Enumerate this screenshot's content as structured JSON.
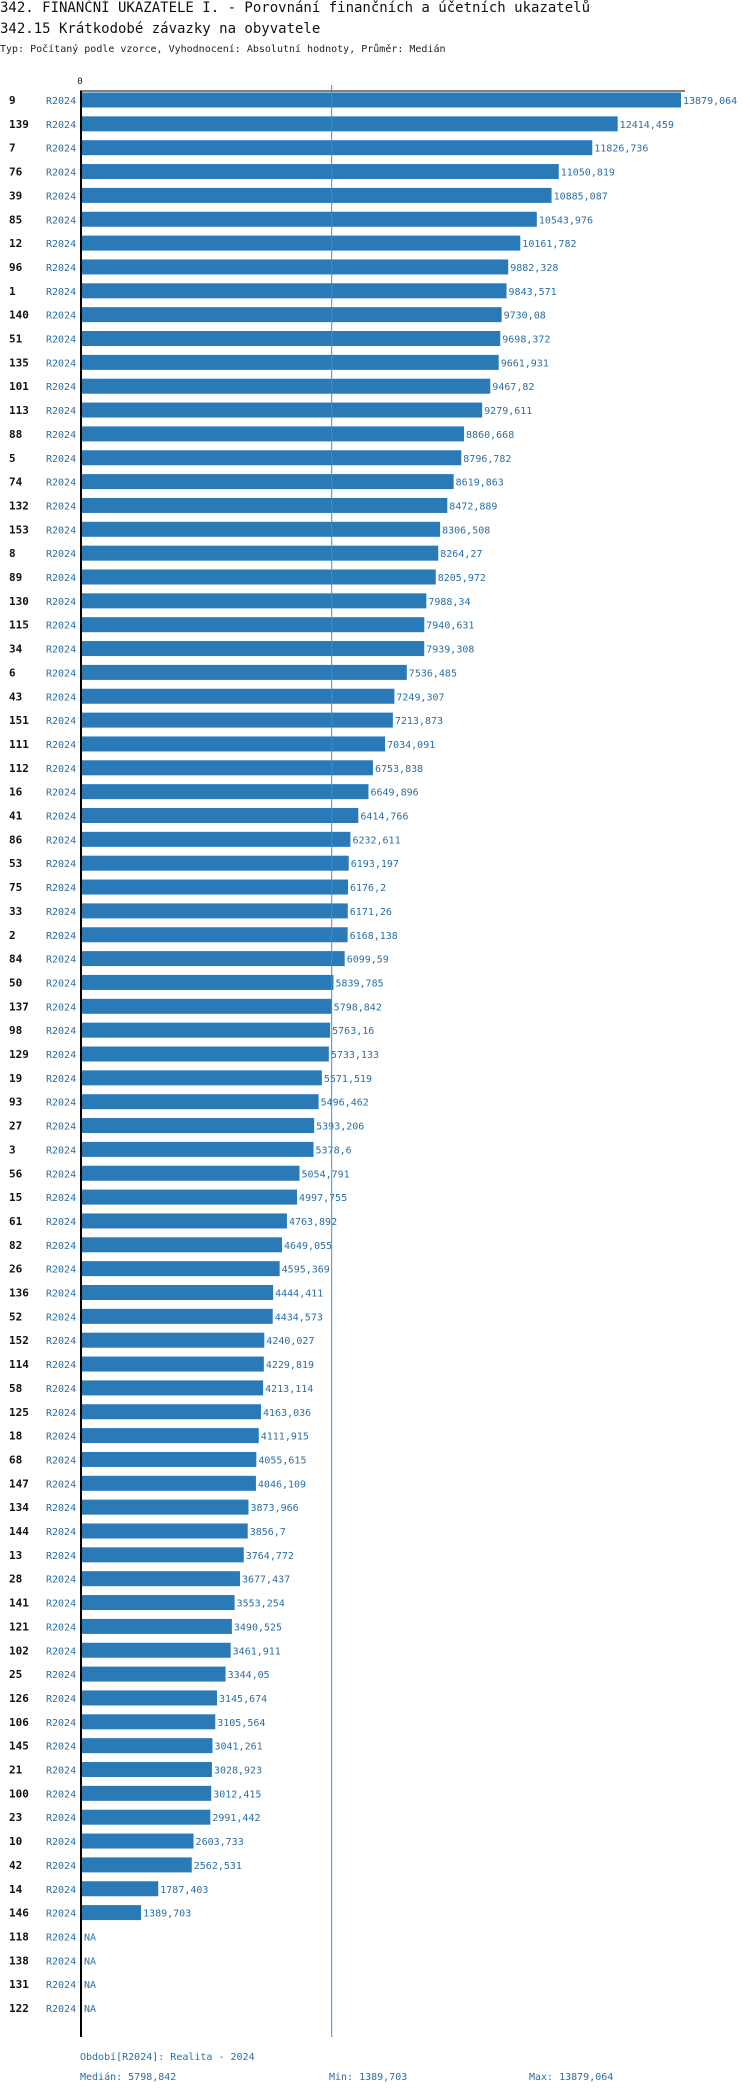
{
  "header": {
    "title": "342. FINANČNÍ UKAZATELE I. - Porovnání finančních a účetních ukazatelů",
    "subtitle": "342.15 Krátkodobé závazky na obyvatele",
    "params": "Typ: Počítaný podle vzorce, Vyhodnocení: Absolutní hodnoty, Průměr: Medián"
  },
  "chart_data": {
    "type": "bar",
    "orientation": "horizontal",
    "axis_zero_label": "0",
    "xlim": [
      0,
      13879.064
    ],
    "median": 5798.842,
    "bar_color": "#2a7ab8",
    "median_line_color": "#3a8fd0",
    "rows": [
      {
        "id": "9",
        "period": "R2024",
        "value": 13879.064,
        "label": "13879,064"
      },
      {
        "id": "139",
        "period": "R2024",
        "value": 12414.459,
        "label": "12414,459"
      },
      {
        "id": "7",
        "period": "R2024",
        "value": 11826.736,
        "label": "11826,736"
      },
      {
        "id": "76",
        "period": "R2024",
        "value": 11050.819,
        "label": "11050,819"
      },
      {
        "id": "39",
        "period": "R2024",
        "value": 10885.087,
        "label": "10885,087"
      },
      {
        "id": "85",
        "period": "R2024",
        "value": 10543.976,
        "label": "10543,976"
      },
      {
        "id": "12",
        "period": "R2024",
        "value": 10161.782,
        "label": "10161,782"
      },
      {
        "id": "96",
        "period": "R2024",
        "value": 9882.328,
        "label": "9882,328"
      },
      {
        "id": "1",
        "period": "R2024",
        "value": 9843.571,
        "label": "9843,571"
      },
      {
        "id": "140",
        "period": "R2024",
        "value": 9730.08,
        "label": "9730,08"
      },
      {
        "id": "51",
        "period": "R2024",
        "value": 9698.372,
        "label": "9698,372"
      },
      {
        "id": "135",
        "period": "R2024",
        "value": 9661.931,
        "label": "9661,931"
      },
      {
        "id": "101",
        "period": "R2024",
        "value": 9467.82,
        "label": "9467,82"
      },
      {
        "id": "113",
        "period": "R2024",
        "value": 9279.611,
        "label": "9279,611"
      },
      {
        "id": "88",
        "period": "R2024",
        "value": 8860.668,
        "label": "8860,668"
      },
      {
        "id": "5",
        "period": "R2024",
        "value": 8796.782,
        "label": "8796,782"
      },
      {
        "id": "74",
        "period": "R2024",
        "value": 8619.863,
        "label": "8619,863"
      },
      {
        "id": "132",
        "period": "R2024",
        "value": 8472.889,
        "label": "8472,889"
      },
      {
        "id": "153",
        "period": "R2024",
        "value": 8306.508,
        "label": "8306,508"
      },
      {
        "id": "8",
        "period": "R2024",
        "value": 8264.27,
        "label": "8264,27"
      },
      {
        "id": "89",
        "period": "R2024",
        "value": 8205.972,
        "label": "8205,972"
      },
      {
        "id": "130",
        "period": "R2024",
        "value": 7988.34,
        "label": "7988,34"
      },
      {
        "id": "115",
        "period": "R2024",
        "value": 7940.631,
        "label": "7940,631"
      },
      {
        "id": "34",
        "period": "R2024",
        "value": 7939.308,
        "label": "7939,308"
      },
      {
        "id": "6",
        "period": "R2024",
        "value": 7536.485,
        "label": "7536,485"
      },
      {
        "id": "43",
        "period": "R2024",
        "value": 7249.307,
        "label": "7249,307"
      },
      {
        "id": "151",
        "period": "R2024",
        "value": 7213.873,
        "label": "7213,873"
      },
      {
        "id": "111",
        "period": "R2024",
        "value": 7034.091,
        "label": "7034,091"
      },
      {
        "id": "112",
        "period": "R2024",
        "value": 6753.838,
        "label": "6753,838"
      },
      {
        "id": "16",
        "period": "R2024",
        "value": 6649.896,
        "label": "6649,896"
      },
      {
        "id": "41",
        "period": "R2024",
        "value": 6414.766,
        "label": "6414,766"
      },
      {
        "id": "86",
        "period": "R2024",
        "value": 6232.611,
        "label": "6232,611"
      },
      {
        "id": "53",
        "period": "R2024",
        "value": 6193.197,
        "label": "6193,197"
      },
      {
        "id": "75",
        "period": "R2024",
        "value": 6176.2,
        "label": "6176,2"
      },
      {
        "id": "33",
        "period": "R2024",
        "value": 6171.26,
        "label": "6171,26"
      },
      {
        "id": "2",
        "period": "R2024",
        "value": 6168.138,
        "label": "6168,138"
      },
      {
        "id": "84",
        "period": "R2024",
        "value": 6099.59,
        "label": "6099,59"
      },
      {
        "id": "50",
        "period": "R2024",
        "value": 5839.785,
        "label": "5839,785"
      },
      {
        "id": "137",
        "period": "R2024",
        "value": 5798.842,
        "label": "5798,842"
      },
      {
        "id": "98",
        "period": "R2024",
        "value": 5763.16,
        "label": "5763,16"
      },
      {
        "id": "129",
        "period": "R2024",
        "value": 5733.133,
        "label": "5733,133"
      },
      {
        "id": "19",
        "period": "R2024",
        "value": 5571.519,
        "label": "5571,519"
      },
      {
        "id": "93",
        "period": "R2024",
        "value": 5496.462,
        "label": "5496,462"
      },
      {
        "id": "27",
        "period": "R2024",
        "value": 5393.206,
        "label": "5393,206"
      },
      {
        "id": "3",
        "period": "R2024",
        "value": 5378.6,
        "label": "5378,6"
      },
      {
        "id": "56",
        "period": "R2024",
        "value": 5054.791,
        "label": "5054,791"
      },
      {
        "id": "15",
        "period": "R2024",
        "value": 4997.755,
        "label": "4997,755"
      },
      {
        "id": "61",
        "period": "R2024",
        "value": 4763.892,
        "label": "4763,892"
      },
      {
        "id": "82",
        "period": "R2024",
        "value": 4649.055,
        "label": "4649,055"
      },
      {
        "id": "26",
        "period": "R2024",
        "value": 4595.369,
        "label": "4595,369"
      },
      {
        "id": "136",
        "period": "R2024",
        "value": 4444.411,
        "label": "4444,411"
      },
      {
        "id": "52",
        "period": "R2024",
        "value": 4434.573,
        "label": "4434,573"
      },
      {
        "id": "152",
        "period": "R2024",
        "value": 4240.027,
        "label": "4240,027"
      },
      {
        "id": "114",
        "period": "R2024",
        "value": 4229.819,
        "label": "4229,819"
      },
      {
        "id": "58",
        "period": "R2024",
        "value": 4213.114,
        "label": "4213,114"
      },
      {
        "id": "125",
        "period": "R2024",
        "value": 4163.036,
        "label": "4163,036"
      },
      {
        "id": "18",
        "period": "R2024",
        "value": 4111.915,
        "label": "4111,915"
      },
      {
        "id": "68",
        "period": "R2024",
        "value": 4055.615,
        "label": "4055,615"
      },
      {
        "id": "147",
        "period": "R2024",
        "value": 4046.109,
        "label": "4046,109"
      },
      {
        "id": "134",
        "period": "R2024",
        "value": 3873.966,
        "label": "3873,966"
      },
      {
        "id": "144",
        "period": "R2024",
        "value": 3856.7,
        "label": "3856,7"
      },
      {
        "id": "13",
        "period": "R2024",
        "value": 3764.772,
        "label": "3764,772"
      },
      {
        "id": "28",
        "period": "R2024",
        "value": 3677.437,
        "label": "3677,437"
      },
      {
        "id": "141",
        "period": "R2024",
        "value": 3553.254,
        "label": "3553,254"
      },
      {
        "id": "121",
        "period": "R2024",
        "value": 3490.525,
        "label": "3490,525"
      },
      {
        "id": "102",
        "period": "R2024",
        "value": 3461.911,
        "label": "3461,911"
      },
      {
        "id": "25",
        "period": "R2024",
        "value": 3344.05,
        "label": "3344,05"
      },
      {
        "id": "126",
        "period": "R2024",
        "value": 3145.674,
        "label": "3145,674"
      },
      {
        "id": "106",
        "period": "R2024",
        "value": 3105.564,
        "label": "3105,564"
      },
      {
        "id": "145",
        "period": "R2024",
        "value": 3041.261,
        "label": "3041,261"
      },
      {
        "id": "21",
        "period": "R2024",
        "value": 3028.923,
        "label": "3028,923"
      },
      {
        "id": "100",
        "period": "R2024",
        "value": 3012.415,
        "label": "3012,415"
      },
      {
        "id": "23",
        "period": "R2024",
        "value": 2991.442,
        "label": "2991,442"
      },
      {
        "id": "10",
        "period": "R2024",
        "value": 2603.733,
        "label": "2603,733"
      },
      {
        "id": "42",
        "period": "R2024",
        "value": 2562.531,
        "label": "2562,531"
      },
      {
        "id": "14",
        "period": "R2024",
        "value": 1787.403,
        "label": "1787,403"
      },
      {
        "id": "146",
        "period": "R2024",
        "value": 1389.703,
        "label": "1389,703"
      },
      {
        "id": "118",
        "period": "R2024",
        "value": null,
        "label": "NA"
      },
      {
        "id": "138",
        "period": "R2024",
        "value": null,
        "label": "NA"
      },
      {
        "id": "131",
        "period": "R2024",
        "value": null,
        "label": "NA"
      },
      {
        "id": "122",
        "period": "R2024",
        "value": null,
        "label": "NA"
      }
    ]
  },
  "footer": {
    "period": "Období[R2024]: Realita - 2024",
    "median": "Medián: 5798,842",
    "min": "Min: 1389,703",
    "max": "Max: 13879,064"
  }
}
